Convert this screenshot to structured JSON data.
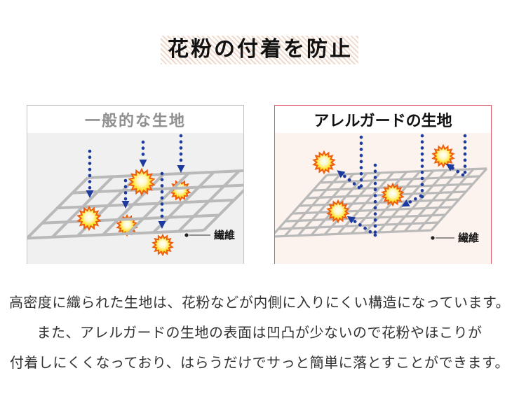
{
  "title": {
    "text": "花粉の付着を防止"
  },
  "panels": {
    "generic": {
      "title": "一般的な生地",
      "fiber_label": "繊維",
      "title_color": "#8f8f8f",
      "border_color": "#c3c3c3",
      "body_bg": "#f0f0f1"
    },
    "allerguard": {
      "title": "アレルガードの生地",
      "fiber_label": "繊維",
      "title_color": "#111111",
      "border_color": "#dd5a6b",
      "body_bg": "#fcf3ee"
    }
  },
  "description": {
    "lines": [
      "高密度に織られた生地は、花粉などが内側に入りにくい構造になっています。",
      "また、アレルガードの生地の表面は凹凸が少ないので花粉やほこりが",
      "付着しにくくなっており、はらうだけでサっと簡単に落とすことができます。"
    ]
  },
  "colors": {
    "arrow_navy": "#1d3b9e",
    "mesh_gray": "#b9b9ba",
    "pollen_edge": "#ee5d0d",
    "title_hatch": "#eed9cb"
  },
  "icons": {
    "pollen": "pollen-particle-icon",
    "arrow": "pollen-arrow-icon",
    "fiber_pointer": "fiber-pointer"
  }
}
